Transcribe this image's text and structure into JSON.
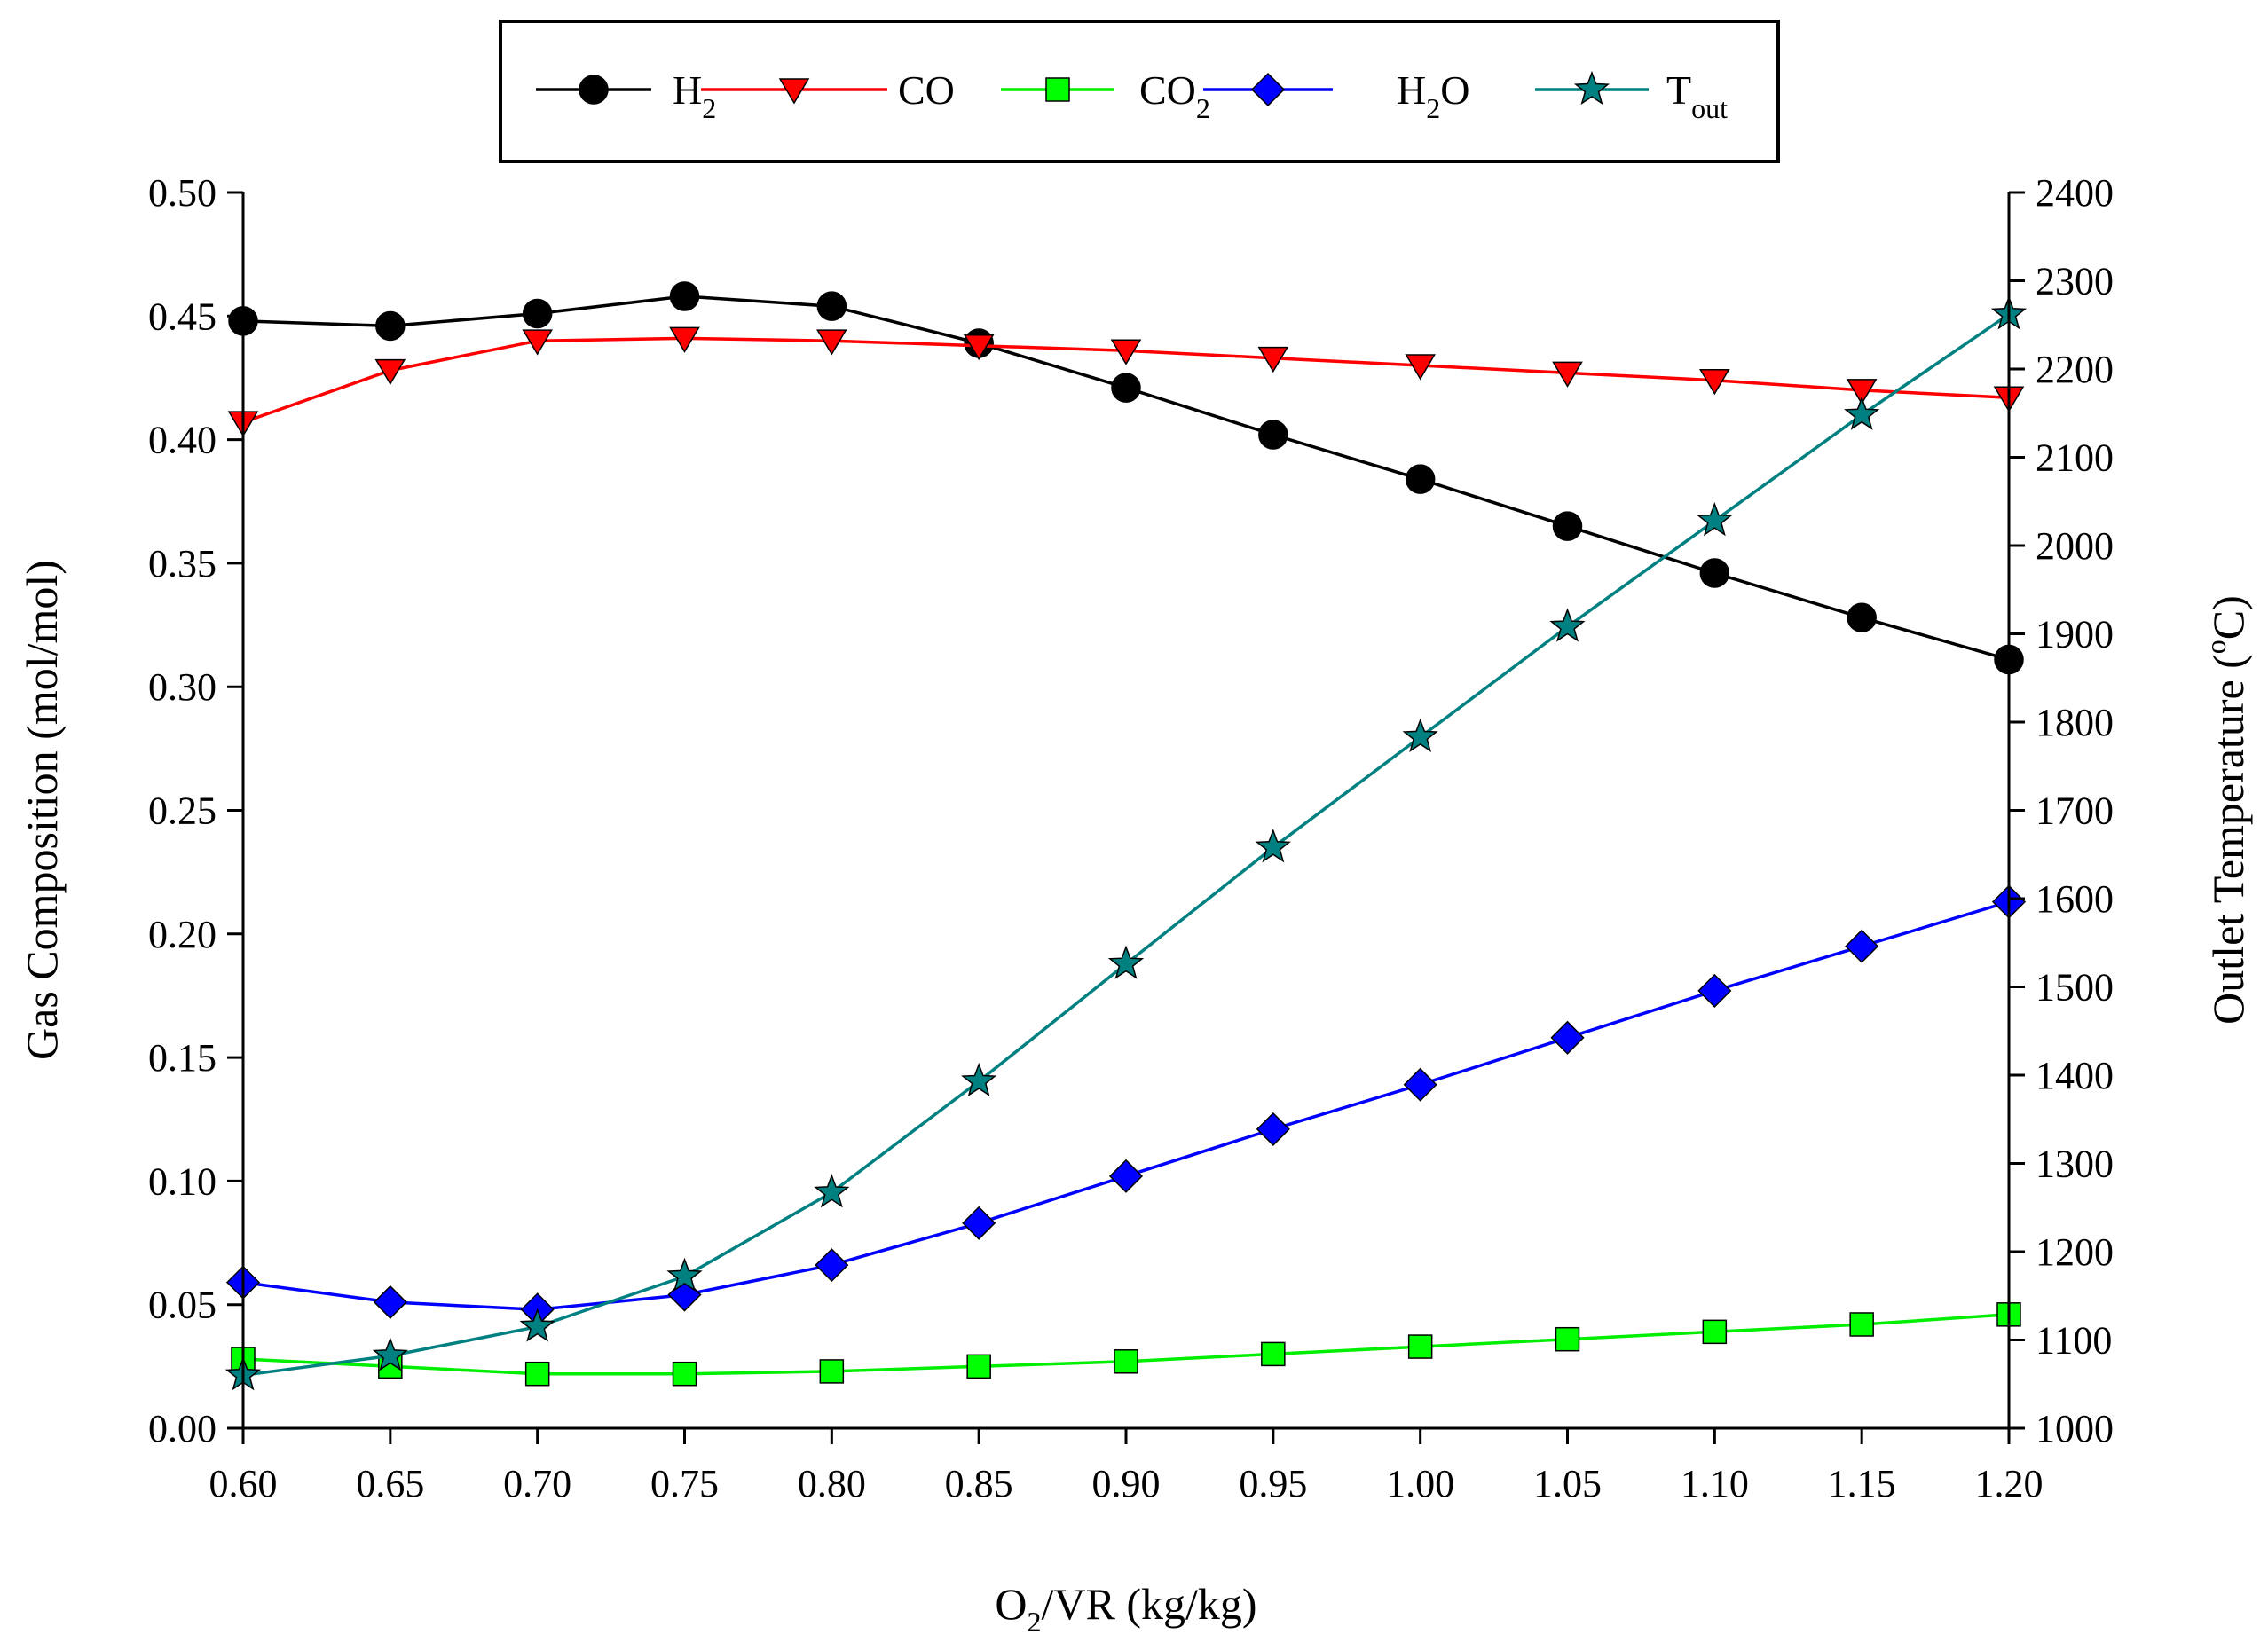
{
  "chart_data": {
    "type": "line",
    "xlabel": {
      "pre": "O",
      "sub": "2",
      "post": "/VR (kg/kg)"
    },
    "ylabel": "Gas Composition (mol/mol)",
    "y2label": {
      "pre": "Outlet Temperature (",
      "sup": "o",
      "post": "C)"
    },
    "x": [
      0.6,
      0.65,
      0.7,
      0.75,
      0.8,
      0.85,
      0.9,
      0.95,
      1.0,
      1.05,
      1.1,
      1.15,
      1.2
    ],
    "xlim": [
      0.6,
      1.2
    ],
    "xticks": [
      "0.60",
      "0.65",
      "0.70",
      "0.75",
      "0.80",
      "0.85",
      "0.90",
      "0.95",
      "1.00",
      "1.05",
      "1.10",
      "1.15",
      "1.20"
    ],
    "ylim": [
      0.0,
      0.5
    ],
    "yticks": [
      "0.00",
      "0.05",
      "0.10",
      "0.15",
      "0.20",
      "0.25",
      "0.30",
      "0.35",
      "0.40",
      "0.45",
      "0.50"
    ],
    "y2lim": [
      1000,
      2400
    ],
    "y2ticks": [
      "1000",
      "1100",
      "1200",
      "1300",
      "1400",
      "1500",
      "1600",
      "1700",
      "1800",
      "1900",
      "2000",
      "2100",
      "2200",
      "2300",
      "2400"
    ],
    "series": [
      {
        "key": "h2",
        "name": "H",
        "name_sub": "2",
        "marker": "circle",
        "color": "#000000",
        "axis": "left",
        "values": [
          0.448,
          0.446,
          0.451,
          0.458,
          0.454,
          0.439,
          0.421,
          0.402,
          0.384,
          0.365,
          0.346,
          0.328,
          0.311
        ]
      },
      {
        "key": "co",
        "name": "CO",
        "name_sub": "",
        "marker": "triangle-down",
        "color": "#ff0000",
        "axis": "left",
        "values": [
          0.407,
          0.428,
          0.44,
          0.441,
          0.44,
          0.438,
          0.436,
          0.433,
          0.43,
          0.427,
          0.424,
          0.42,
          0.417
        ]
      },
      {
        "key": "co2",
        "name": "CO",
        "name_sub": "2",
        "marker": "square",
        "color": "#00ff00",
        "axis": "left",
        "values": [
          0.028,
          0.025,
          0.022,
          0.022,
          0.023,
          0.025,
          0.027,
          0.03,
          0.033,
          0.036,
          0.039,
          0.042,
          0.046
        ]
      },
      {
        "key": "h2o",
        "name": "H",
        "name_sub": "2",
        "name_post": "O",
        "marker": "diamond",
        "color": "#0000ff",
        "axis": "left",
        "values": [
          0.059,
          0.051,
          0.048,
          0.054,
          0.066,
          0.083,
          0.102,
          0.121,
          0.139,
          0.158,
          0.177,
          0.195,
          0.213
        ]
      },
      {
        "key": "tout",
        "name": "T",
        "name_sub": "out",
        "marker": "star",
        "color": "#008080",
        "axis": "right",
        "values": [
          1060,
          1082,
          1115,
          1172,
          1267,
          1393,
          1526,
          1658,
          1783,
          1908,
          2028,
          2148,
          2262
        ]
      }
    ],
    "legend_position": "top-center"
  }
}
